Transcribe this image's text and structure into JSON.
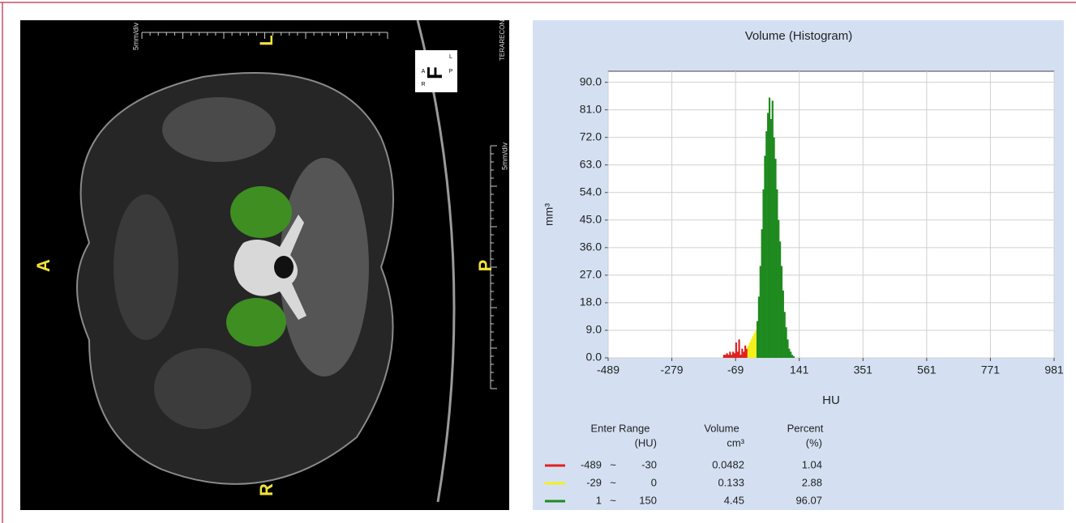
{
  "viewer": {
    "orientation_labels": {
      "left": "A",
      "right": "P",
      "bottom": "R",
      "top": "L"
    },
    "scale_label": "5mm/div",
    "vendor": "TERARECON",
    "cube": {
      "face": "F",
      "left": "A",
      "right": "P",
      "top": "L",
      "bottom": "R"
    }
  },
  "chart_data": {
    "type": "histogram",
    "title": "Volume (Histogram)",
    "x_label": "HU",
    "y_label": "mm³",
    "bins": [
      -110,
      -105,
      -100,
      -95,
      -90,
      -85,
      -80,
      -75,
      -70,
      -65,
      -60,
      -55,
      -50,
      -45,
      -40,
      -35,
      -30,
      -25,
      -20,
      -15,
      -10,
      -5,
      0,
      5,
      10,
      15,
      20,
      25,
      30,
      35,
      40,
      45,
      50,
      55,
      60,
      65,
      70,
      75,
      80,
      85,
      90,
      95,
      100,
      105,
      110,
      115,
      120,
      125,
      130
    ],
    "counts": [
      1,
      1,
      1.5,
      1,
      2,
      1,
      2,
      1.5,
      5,
      2,
      6,
      1,
      3,
      2,
      4,
      3,
      4,
      5,
      6,
      7,
      8,
      9,
      12,
      20,
      30,
      42,
      55,
      66,
      74,
      80,
      85,
      78,
      84,
      72,
      65,
      55,
      45,
      38,
      30,
      22,
      15,
      10,
      6,
      3,
      2,
      1,
      0.5,
      0
    ],
    "xlim": [
      -489,
      981
    ],
    "ylim": [
      0,
      93.6
    ],
    "xticks": [
      -489,
      -279,
      -69,
      141,
      351,
      561,
      771,
      981
    ],
    "yticks": [
      {
        "value": 0,
        "label": "0.0"
      },
      {
        "value": 9,
        "label": "9.0"
      },
      {
        "value": 18,
        "label": "18.0"
      },
      {
        "value": 27,
        "label": "27.0"
      },
      {
        "value": 36,
        "label": "36.0"
      },
      {
        "value": 45,
        "label": "45.0"
      },
      {
        "value": 54,
        "label": "54.0"
      },
      {
        "value": 63,
        "label": "63.0"
      },
      {
        "value": 72,
        "label": "72.0"
      },
      {
        "value": 81,
        "label": "81.0"
      },
      {
        "value": 90,
        "label": "90.0"
      }
    ],
    "grid": true,
    "legend_table": {
      "headers": [
        "Enter Range",
        "Volume",
        "Percent"
      ],
      "units": [
        "(HU)",
        "cm³",
        "(%)"
      ],
      "separator": "~",
      "rows": [
        {
          "color": "#e02020",
          "low": -489,
          "high": -30,
          "volume": 0.0482,
          "percent": 1.04
        },
        {
          "color": "#f5ef1a",
          "low": -29,
          "high": 0,
          "volume": 0.133,
          "percent": 2.88
        },
        {
          "color": "#1f8a1f",
          "low": 1,
          "high": 150,
          "volume": 4.45,
          "percent": 96.07
        }
      ]
    }
  }
}
